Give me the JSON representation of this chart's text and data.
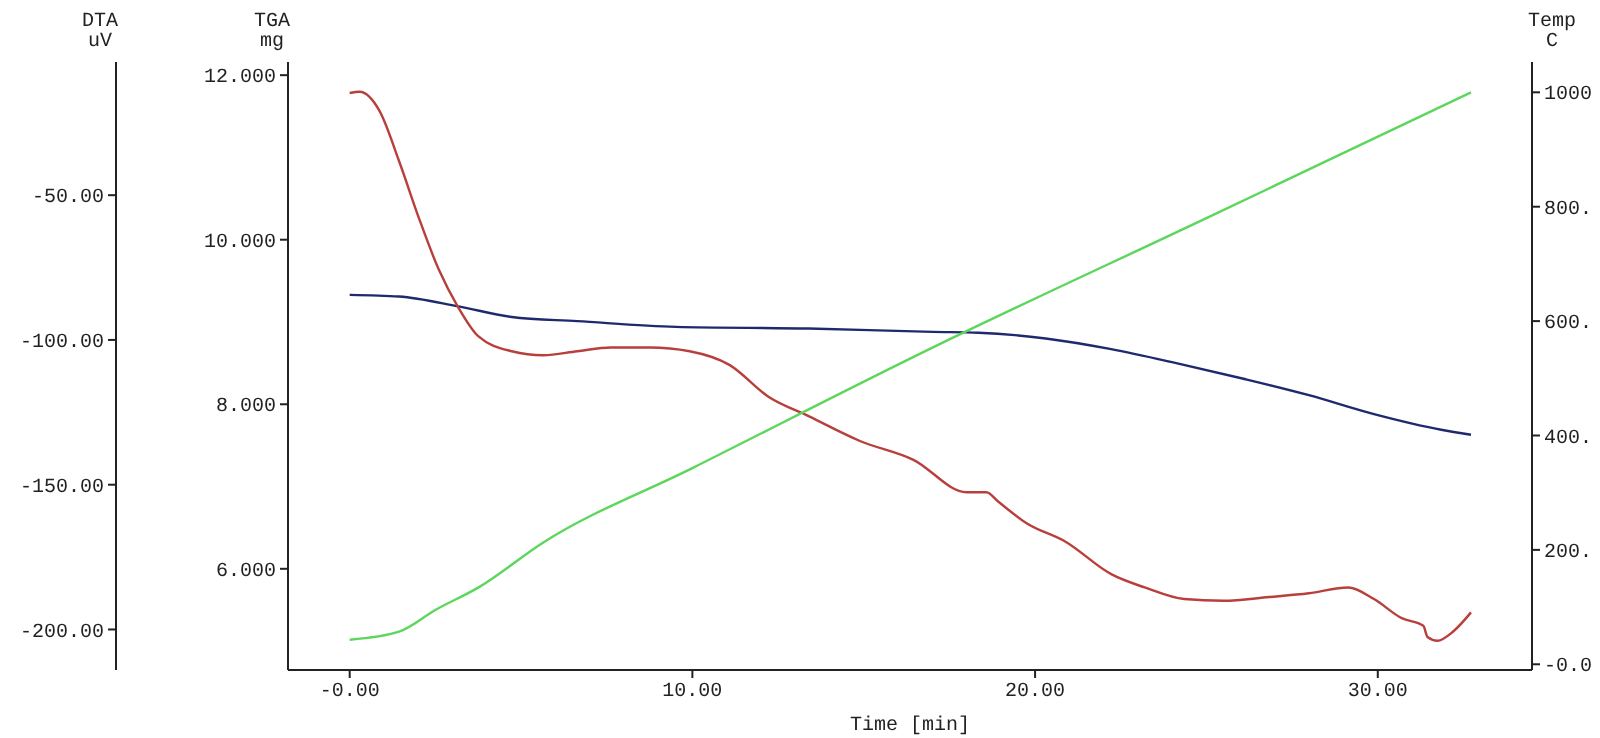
{
  "chart_data": {
    "type": "line",
    "xlabel": "Time [min]",
    "ylabel": "DTA\nuV",
    "y2label": "Temp\nC",
    "y3label": "TGA\nmg",
    "xlim": [
      -1.8,
      34.5
    ],
    "xticks": [
      {
        "value": 0,
        "label": "-0.00"
      },
      {
        "value": 10,
        "label": "10.00"
      },
      {
        "value": 20,
        "label": "20.00"
      },
      {
        "value": 30,
        "label": "30.00"
      }
    ],
    "y3lim": [
      4.77,
      12.16
    ],
    "y3ticks": [
      {
        "value": 6,
        "label": "6.000"
      },
      {
        "value": 8,
        "label": "8.000"
      },
      {
        "value": 10,
        "label": "10.000"
      },
      {
        "value": 12,
        "label": "12.000"
      }
    ],
    "y2lim": [
      -10,
      1053
    ],
    "y2ticks": [
      {
        "value": 0,
        "label": "-0.0"
      },
      {
        "value": 200,
        "label": "200."
      },
      {
        "value": 400,
        "label": "400."
      },
      {
        "value": 600,
        "label": "600."
      },
      {
        "value": 800,
        "label": "800."
      },
      1000
    ],
    "ylim": [
      -214,
      -4
    ],
    "yticks": [
      {
        "value": -200,
        "label": "-200.00"
      },
      {
        "value": -150,
        "label": "-150.00"
      },
      {
        "value": -100,
        "label": "-100.00"
      },
      {
        "value": -50,
        "label": "-50.00"
      }
    ],
    "marker": "none",
    "line_style": "solid",
    "series": [
      {
        "color": "#1f2a6e",
        "axis": "y3",
        "x": [
          0,
          1.44,
          3.17,
          4.73,
          6.64,
          9.52,
          13.39,
          17.02,
          18.35,
          20.31,
          22.22,
          24.12,
          26.08,
          27.99,
          29.89,
          31.85,
          32.72
        ],
        "values": [
          9.33,
          9.31,
          9.19,
          9.06,
          9.01,
          8.94,
          8.92,
          8.88,
          8.87,
          8.8,
          8.67,
          8.5,
          8.31,
          8.11,
          7.88,
          7.69,
          7.63
        ]
      },
      {
        "color": "#b8403c",
        "axis": "y",
        "x": [
          0,
          0.29,
          0.87,
          1.44,
          2.02,
          2.6,
          3.17,
          3.75,
          4.73,
          5.65,
          6.64,
          7.62,
          8.77,
          9.92,
          11.08,
          12.23,
          13.39,
          14.89,
          16.45,
          18.0,
          18.58,
          18.93,
          19.74,
          20.89,
          22.22,
          23.2,
          24.35,
          25.5,
          26.83,
          27.99,
          29.14,
          29.89,
          30.7,
          31.33,
          31.45,
          31.74,
          32.2,
          32.72
        ],
        "values": [
          -14.7,
          -14.3,
          -20.9,
          -38.2,
          -57.9,
          -75.7,
          -88.8,
          -98.7,
          -103.9,
          -105.3,
          -103.9,
          -102.6,
          -102.6,
          -103.9,
          -108.6,
          -119.7,
          -126.3,
          -134.9,
          -141.4,
          -152.6,
          -152.6,
          -155.9,
          -163.2,
          -169.7,
          -180.9,
          -185.5,
          -189.5,
          -190.1,
          -188.8,
          -187.5,
          -185.5,
          -189.5,
          -196.1,
          -198.7,
          -202.6,
          -203.9,
          -200.7,
          -194.1
        ]
      },
      {
        "color": "#5cd65c",
        "axis": "y2",
        "x": [
          0,
          1.44,
          2.5,
          3.75,
          5.65,
          10,
          17.02,
          25,
          32.72
        ],
        "values": [
          43,
          57,
          95,
          134,
          213,
          343,
          554,
          780,
          1000
        ]
      }
    ]
  }
}
